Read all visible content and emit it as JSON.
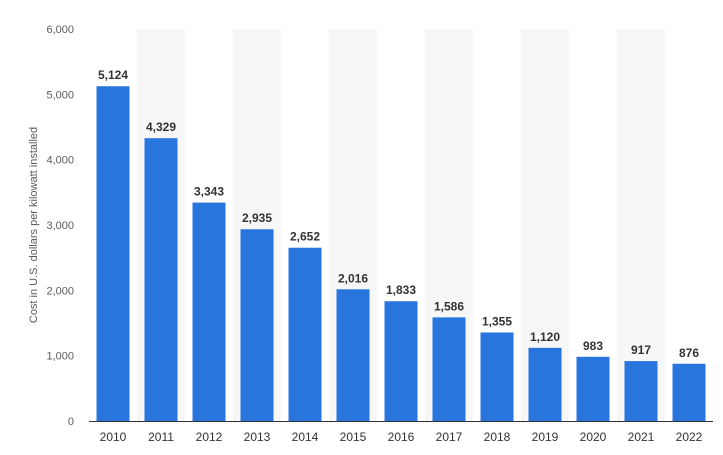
{
  "chart_data": {
    "type": "bar",
    "title": "",
    "xlabel": "",
    "ylabel": "Cost in U.S. dollars per kilowatt installed",
    "categories": [
      "2010",
      "2011",
      "2012",
      "2013",
      "2014",
      "2015",
      "2016",
      "2017",
      "2018",
      "2019",
      "2020",
      "2021",
      "2022"
    ],
    "values": [
      5124,
      4329,
      3343,
      2935,
      2652,
      2016,
      1833,
      1586,
      1355,
      1120,
      983,
      917,
      876
    ],
    "value_labels": [
      "5,124",
      "4,329",
      "3,343",
      "2,935",
      "2,652",
      "2,016",
      "1,833",
      "1,586",
      "1,355",
      "1,120",
      "983",
      "917",
      "876"
    ],
    "ylim": [
      0,
      6000
    ],
    "yticks": [
      0,
      1000,
      2000,
      3000,
      4000,
      5000,
      6000
    ],
    "ytick_labels": [
      "0",
      "1,000",
      "2,000",
      "3,000",
      "4,000",
      "5,000",
      "6,000"
    ],
    "grid": false,
    "alternating_column_bands": true,
    "legend": "none",
    "colors": {
      "bar": "#2876dd",
      "band": "#f7f7f7",
      "axis_line": "#333333"
    }
  }
}
